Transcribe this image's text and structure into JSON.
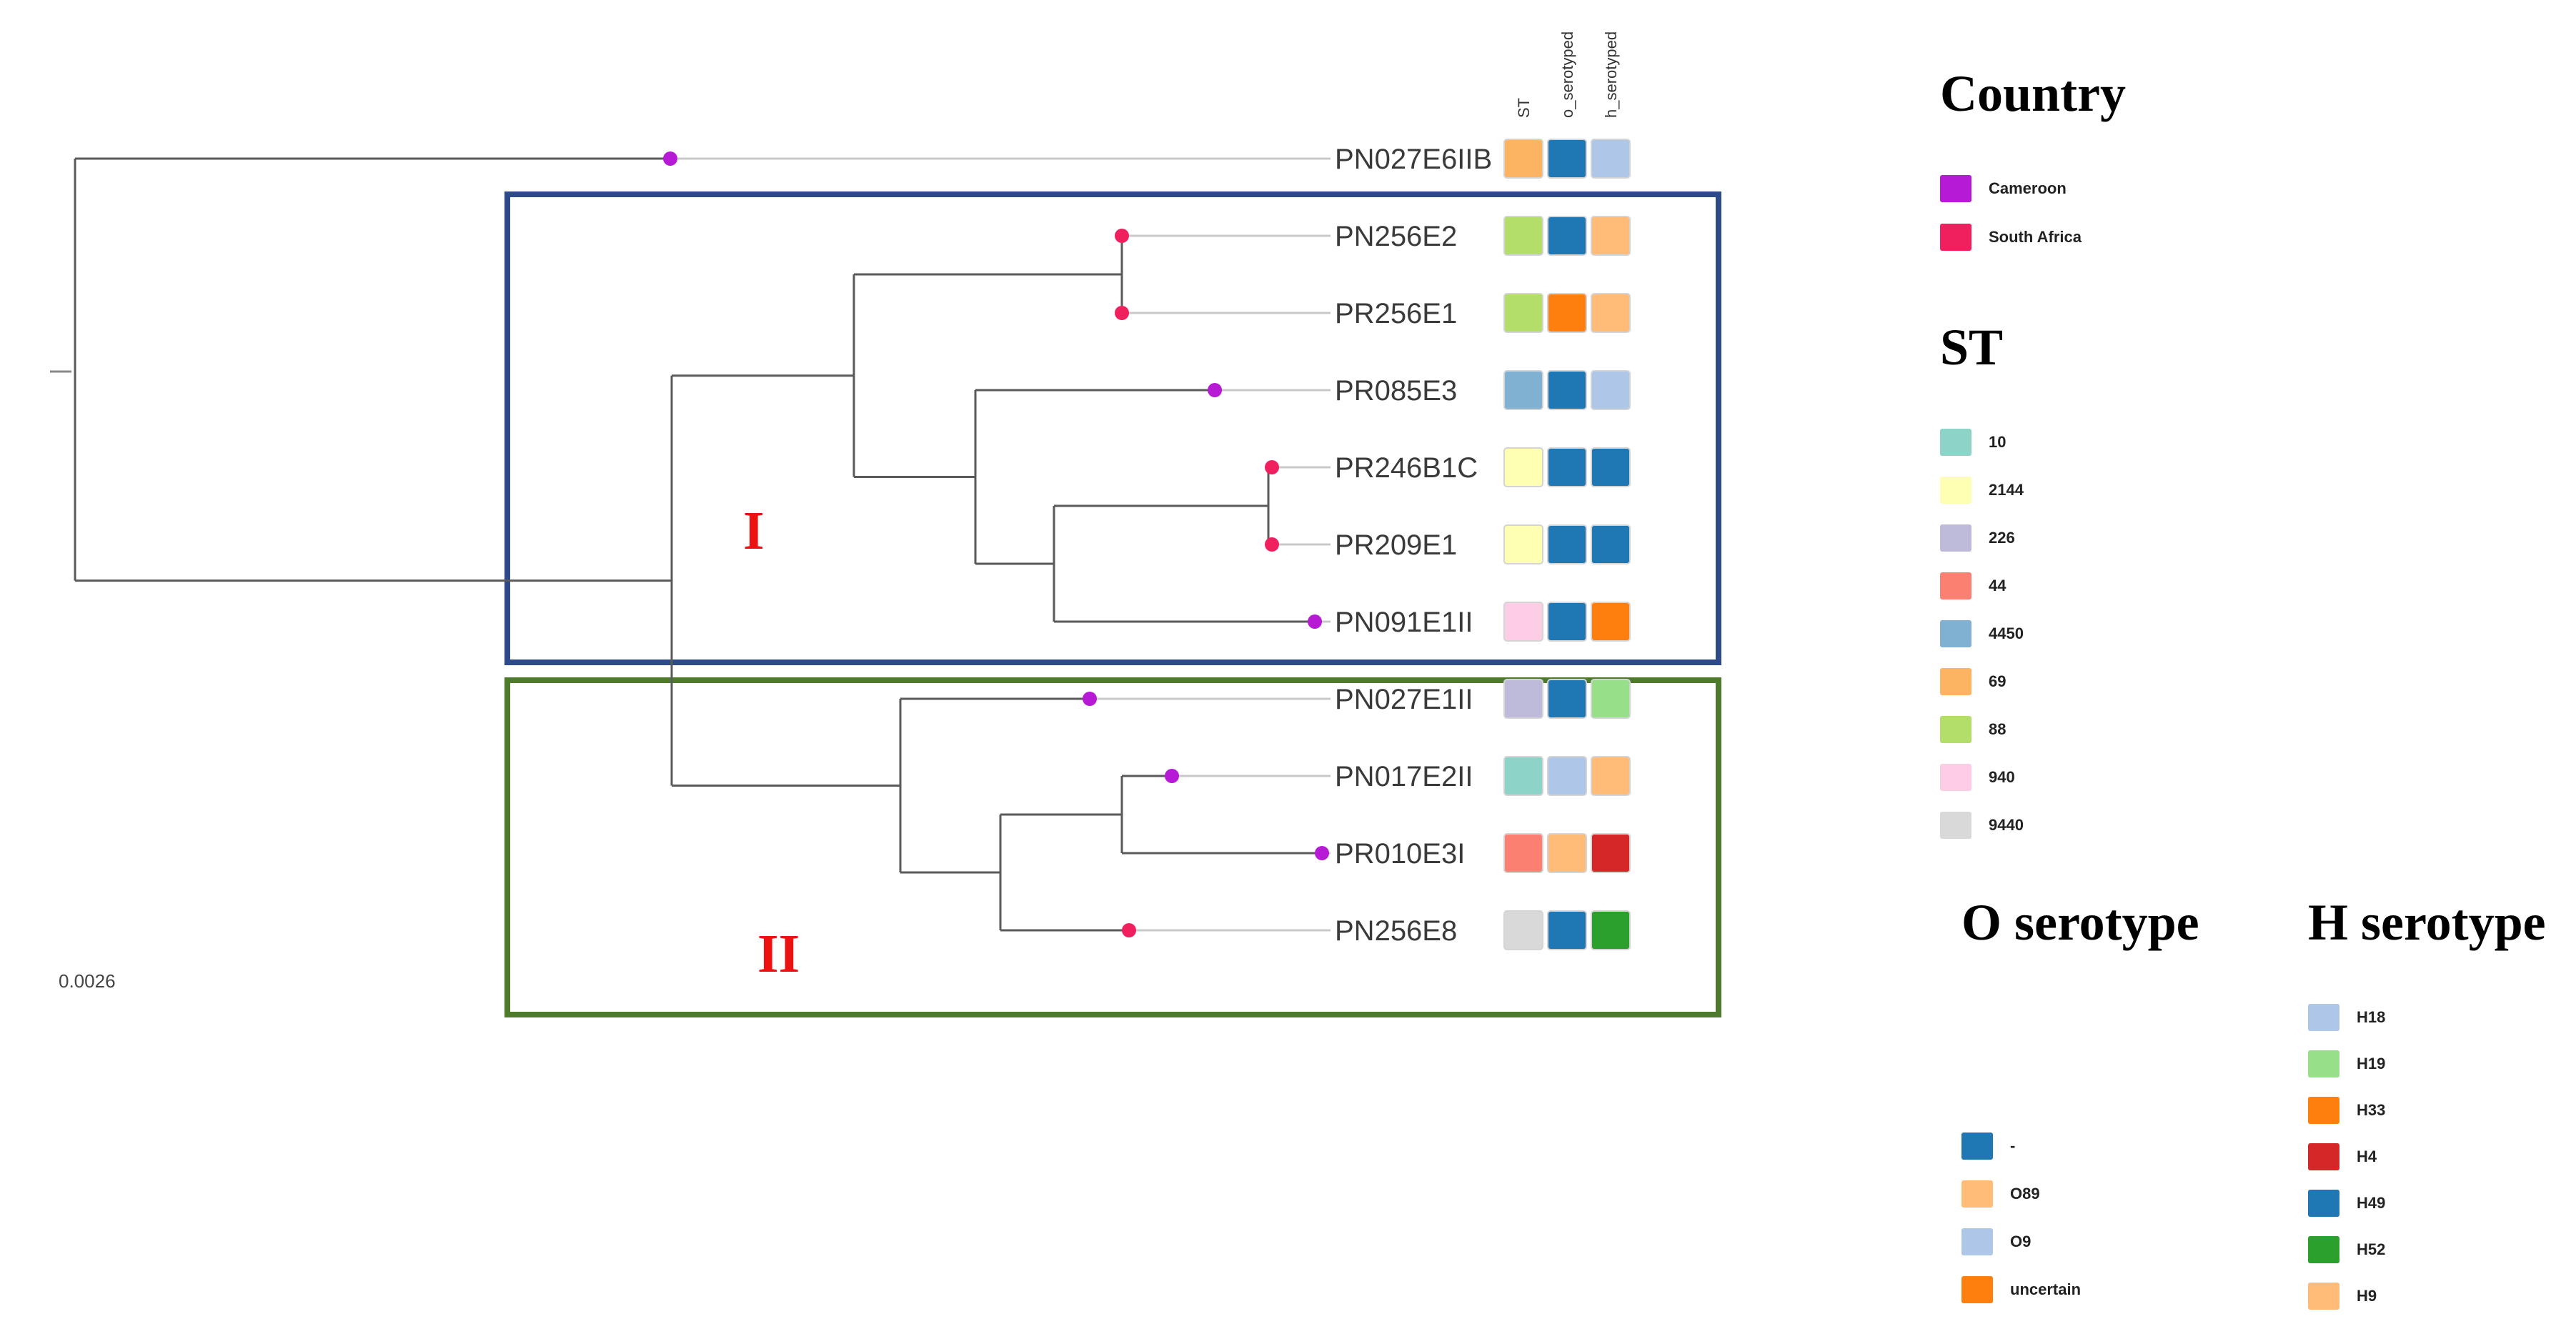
{
  "scale_bar": {
    "label": "0.0026"
  },
  "columns": [
    "ST",
    "o_serotyped",
    "h_serotyped"
  ],
  "clades": [
    {
      "label": "I",
      "color": "#2f4a8a"
    },
    {
      "label": "II",
      "color": "#4e7a2c"
    }
  ],
  "leaves": [
    {
      "name": "PN027E6IIB",
      "country": "Cameroon",
      "st": "69",
      "o": "-",
      "h": "H18"
    },
    {
      "name": "PN256E2",
      "country": "South Africa",
      "st": "88",
      "o": "-",
      "h": "H9"
    },
    {
      "name": "PR256E1",
      "country": "South Africa",
      "st": "88",
      "o": "uncertain",
      "h": "H9"
    },
    {
      "name": "PR085E3",
      "country": "Cameroon",
      "st": "4450",
      "o": "-",
      "h": "H18"
    },
    {
      "name": "PR246B1C",
      "country": "South Africa",
      "st": "2144",
      "o": "-",
      "h": "H49"
    },
    {
      "name": "PR209E1",
      "country": "South Africa",
      "st": "2144",
      "o": "-",
      "h": "H49"
    },
    {
      "name": "PN091E1II",
      "country": "Cameroon",
      "st": "940",
      "o": "-",
      "h": "H33"
    },
    {
      "name": "PN027E1II",
      "country": "Cameroon",
      "st": "226",
      "o": "-",
      "h": "H19"
    },
    {
      "name": "PN017E2II",
      "country": "Cameroon",
      "st": "10",
      "o": "O9",
      "h": "H9"
    },
    {
      "name": "PR010E3I",
      "country": "Cameroon",
      "st": "44",
      "o": "O89",
      "h": "H4"
    },
    {
      "name": "PN256E8",
      "country": "South Africa",
      "st": "9440",
      "o": "-",
      "h": "H52"
    }
  ],
  "legends": {
    "country": {
      "title": "Country",
      "items": [
        {
          "label": "Cameroon",
          "color": "#b61ad4"
        },
        {
          "label": "South Africa",
          "color": "#f0205f"
        }
      ]
    },
    "st": {
      "title": "ST",
      "items": [
        {
          "label": "10",
          "color": "#8dd3c7"
        },
        {
          "label": "2144",
          "color": "#ffffb3"
        },
        {
          "label": "226",
          "color": "#bebada"
        },
        {
          "label": "44",
          "color": "#fb8072"
        },
        {
          "label": "4450",
          "color": "#80b1d3"
        },
        {
          "label": "69",
          "color": "#fdb462"
        },
        {
          "label": "88",
          "color": "#b3de69"
        },
        {
          "label": "940",
          "color": "#fccde5"
        },
        {
          "label": "9440",
          "color": "#d9d9d9"
        }
      ]
    },
    "o_serotype": {
      "title": "O serotype",
      "items": [
        {
          "label": "-",
          "color": "#1f77b4"
        },
        {
          "label": "O89",
          "color": "#ffbb78"
        },
        {
          "label": "O9",
          "color": "#aec7e8"
        },
        {
          "label": "uncertain",
          "color": "#ff7f0e"
        }
      ]
    },
    "h_serotype": {
      "title": "H serotype",
      "items": [
        {
          "label": "H18",
          "color": "#aec7e8"
        },
        {
          "label": "H19",
          "color": "#98df8a"
        },
        {
          "label": "H33",
          "color": "#ff7f0e"
        },
        {
          "label": "H4",
          "color": "#d62728"
        },
        {
          "label": "H49",
          "color": "#1f77b4"
        },
        {
          "label": "H52",
          "color": "#2ca02c"
        },
        {
          "label": "H9",
          "color": "#ffbb78"
        }
      ]
    }
  }
}
